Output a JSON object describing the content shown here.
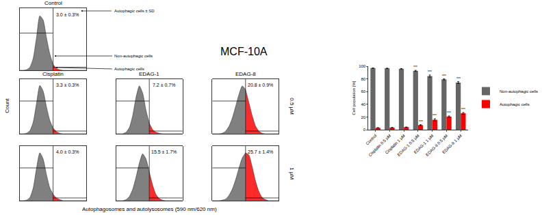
{
  "figure": {
    "title": "MCF-10A",
    "x_label": "Autophagosomes and autolysosomes (590 nm/620 nm)",
    "y_label": "Count",
    "row_labels": [
      "0.5 µM",
      "1 µM"
    ],
    "callouts": [
      "Autophagic cells ± SD",
      "Non-autophagic cells",
      "Autophagic cells"
    ]
  },
  "chart_data": [
    {
      "type": "area",
      "title": "Control",
      "x": [
        0,
        5,
        10,
        15,
        20,
        25,
        30,
        35,
        40,
        45,
        50,
        55,
        60,
        65,
        70,
        75,
        80,
        85,
        90,
        95,
        100
      ],
      "series": [
        {
          "color": "#808080",
          "values": [
            0,
            0,
            1,
            5,
            20,
            55,
            92,
            85,
            55,
            28,
            10,
            null,
            null,
            null,
            null,
            null,
            null,
            null,
            null,
            null,
            null
          ]
        },
        {
          "color": "#ff2a2a",
          "values": [
            null,
            null,
            null,
            null,
            null,
            null,
            null,
            null,
            null,
            null,
            10,
            3,
            1,
            0,
            0,
            0,
            0,
            0,
            0,
            0,
            0
          ]
        }
      ],
      "xlim": [
        0,
        100
      ],
      "ylim": [
        0,
        105
      ],
      "gate": 50,
      "annotations": [
        "3.0 ± 0.3%"
      ],
      "tick_labels": false
    },
    {
      "type": "area",
      "title": "Cisplatin",
      "x": [
        0,
        5,
        10,
        15,
        20,
        25,
        30,
        35,
        40,
        45,
        50,
        55,
        60,
        65,
        70,
        75,
        80,
        85,
        90,
        95,
        100
      ],
      "series": [
        {
          "color": "#808080",
          "values": [
            0,
            0,
            1,
            6,
            22,
            58,
            93,
            82,
            52,
            26,
            11,
            null,
            null,
            null,
            null,
            null,
            null,
            null,
            null,
            null,
            null
          ]
        },
        {
          "color": "#ff2a2a",
          "values": [
            null,
            null,
            null,
            null,
            null,
            null,
            null,
            null,
            null,
            null,
            11,
            4,
            1,
            0,
            0,
            0,
            0,
            0,
            0,
            0,
            0
          ]
        }
      ],
      "xlim": [
        0,
        100
      ],
      "ylim": [
        0,
        105
      ],
      "gate": 50,
      "annotations": [
        "3.3 ± 0.3%"
      ],
      "tick_labels": false
    },
    {
      "type": "area",
      "title": "EDAG-1",
      "x": [
        0,
        5,
        10,
        15,
        20,
        25,
        30,
        35,
        40,
        45,
        50,
        55,
        60,
        65,
        70,
        75,
        80,
        85,
        90,
        95,
        100
      ],
      "series": [
        {
          "color": "#808080",
          "values": [
            0,
            0,
            0,
            3,
            12,
            35,
            70,
            92,
            78,
            45,
            20,
            null,
            null,
            null,
            null,
            null,
            null,
            null,
            null,
            null,
            null
          ]
        },
        {
          "color": "#ff2a2a",
          "values": [
            null,
            null,
            null,
            null,
            null,
            null,
            null,
            null,
            null,
            null,
            20,
            8,
            3,
            1,
            0,
            0,
            0,
            0,
            0,
            0,
            0
          ]
        }
      ],
      "xlim": [
        0,
        100
      ],
      "ylim": [
        0,
        105
      ],
      "gate": 50,
      "annotations": [
        "7.2 ± 0.7%"
      ],
      "tick_labels": false
    },
    {
      "type": "area",
      "title": "EDAG-8",
      "x": [
        0,
        5,
        10,
        15,
        20,
        25,
        30,
        35,
        40,
        45,
        50,
        55,
        60,
        65,
        70,
        75,
        80,
        85,
        90,
        95,
        100
      ],
      "series": [
        {
          "color": "#808080",
          "values": [
            0,
            0,
            0,
            1,
            5,
            14,
            30,
            52,
            75,
            92,
            85,
            null,
            null,
            null,
            null,
            null,
            null,
            null,
            null,
            null,
            null
          ]
        },
        {
          "color": "#ff2a2a",
          "values": [
            null,
            null,
            null,
            null,
            null,
            null,
            null,
            null,
            null,
            null,
            85,
            60,
            35,
            15,
            5,
            1,
            0,
            0,
            0,
            0,
            0
          ]
        }
      ],
      "xlim": [
        0,
        100
      ],
      "ylim": [
        0,
        105
      ],
      "gate": 50,
      "annotations": [
        "20.8 ± 0.9%"
      ],
      "tick_labels": false
    },
    {
      "type": "area",
      "x": [
        0,
        5,
        10,
        15,
        20,
        25,
        30,
        35,
        40,
        45,
        50,
        55,
        60,
        65,
        70,
        75,
        80,
        85,
        90,
        95,
        100
      ],
      "series": [
        {
          "color": "#808080",
          "values": [
            0,
            0,
            1,
            6,
            24,
            62,
            92,
            80,
            50,
            25,
            12,
            null,
            null,
            null,
            null,
            null,
            null,
            null,
            null,
            null,
            null
          ]
        },
        {
          "color": "#ff2a2a",
          "values": [
            null,
            null,
            null,
            null,
            null,
            null,
            null,
            null,
            null,
            null,
            12,
            5,
            2,
            0,
            0,
            0,
            0,
            0,
            0,
            0,
            0
          ]
        }
      ],
      "xlim": [
        0,
        100
      ],
      "ylim": [
        0,
        105
      ],
      "gate": 50,
      "annotations": [
        "4.0 ± 0.3%"
      ],
      "tick_labels": false
    },
    {
      "type": "area",
      "x": [
        0,
        5,
        10,
        15,
        20,
        25,
        30,
        35,
        40,
        45,
        50,
        55,
        60,
        65,
        70,
        75,
        80,
        85,
        90,
        95,
        100
      ],
      "series": [
        {
          "color": "#808080",
          "values": [
            0,
            0,
            0,
            2,
            8,
            22,
            45,
            72,
            90,
            80,
            55,
            null,
            null,
            null,
            null,
            null,
            null,
            null,
            null,
            null,
            null
          ]
        },
        {
          "color": "#ff2a2a",
          "values": [
            null,
            null,
            null,
            null,
            null,
            null,
            null,
            null,
            null,
            null,
            55,
            30,
            12,
            4,
            1,
            0,
            0,
            0,
            0,
            0,
            0
          ]
        }
      ],
      "xlim": [
        0,
        100
      ],
      "ylim": [
        0,
        105
      ],
      "gate": 50,
      "annotations": [
        "15.5 ± 1.7%"
      ],
      "tick_labels": false
    },
    {
      "type": "area",
      "x": [
        0,
        5,
        10,
        15,
        20,
        25,
        30,
        35,
        40,
        45,
        50,
        55,
        60,
        65,
        70,
        75,
        80,
        85,
        90,
        95,
        100
      ],
      "series": [
        {
          "color": "#808080",
          "values": [
            0,
            0,
            0,
            1,
            3,
            10,
            22,
            40,
            62,
            82,
            92,
            null,
            null,
            null,
            null,
            null,
            null,
            null,
            null,
            null,
            null
          ]
        },
        {
          "color": "#ff2a2a",
          "values": [
            null,
            null,
            null,
            null,
            null,
            null,
            null,
            null,
            null,
            null,
            92,
            88,
            65,
            38,
            18,
            6,
            2,
            0,
            0,
            0,
            0
          ]
        }
      ],
      "xlim": [
        0,
        100
      ],
      "ylim": [
        0,
        105
      ],
      "gate": 50,
      "annotations": [
        "25.7 ± 1.4%"
      ],
      "tick_labels": false
    },
    {
      "type": "bar",
      "y_label": "Cell population [%]",
      "categories": [
        "Control",
        "Cisplatin 0.5 µM",
        "Cisplatin 1 µM",
        "EDAG-1 0.5 µM",
        "EDAG-1 1 µM",
        "EDAG-8 0.5 µM",
        "EDAG-8 1 µM"
      ],
      "series": [
        {
          "name": "Non-autophagic cells",
          "color": "#666666",
          "values": [
            97.0,
            96.7,
            96.0,
            92.8,
            84.5,
            79.2,
            74.3
          ],
          "errors": [
            0.3,
            0.3,
            0.3,
            0.7,
            1.7,
            0.9,
            1.4
          ],
          "significance": [
            null,
            null,
            null,
            "***",
            "***",
            "***",
            "***"
          ]
        },
        {
          "name": "Autophagic cells",
          "color": "#ff0000",
          "values": [
            3.0,
            3.3,
            4.0,
            7.2,
            15.5,
            20.8,
            25.7
          ],
          "errors": [
            0.3,
            0.3,
            0.3,
            0.7,
            1.7,
            0.9,
            1.4
          ],
          "significance": [
            null,
            null,
            null,
            "***",
            "***",
            "***",
            "***"
          ]
        }
      ],
      "ylim": [
        0,
        100
      ],
      "yticks": [
        0,
        20,
        40,
        60,
        80,
        100
      ],
      "legend": "right"
    }
  ]
}
